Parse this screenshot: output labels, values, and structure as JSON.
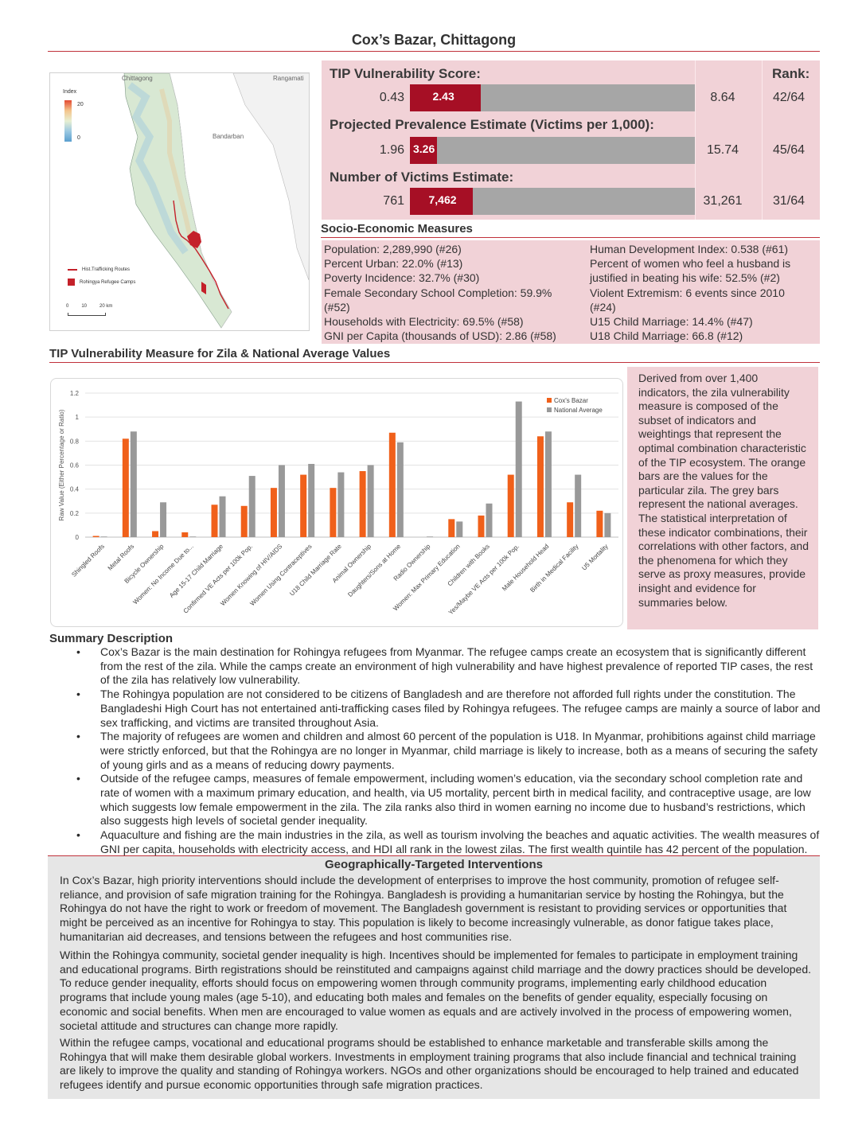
{
  "title": "Cox’s Bazar, Chittagong",
  "map": {
    "labels": {
      "chittagong": "Chittagong",
      "rangamati": "Rangamati",
      "bandarban": "Bandarban"
    },
    "legend_title": "Index",
    "legend_max": "20",
    "legend_min": "0",
    "legend_routes": "Hist.Trafficking Routes",
    "legend_camps": "Rohingya Refugee Camps",
    "scale": [
      "0",
      "10",
      "20 km"
    ]
  },
  "scores": {
    "vuln_title": "TIP Vulnerability Score:",
    "rank_title": "Rank:",
    "rows": [
      {
        "min": "0.43",
        "value": "2.43",
        "max": "8.64",
        "rank": "42/64",
        "fill": 0.249
      },
      {
        "min": "1.96",
        "value": "3.26",
        "max": "15.74",
        "rank": "45/64",
        "fill": 0.094
      },
      {
        "min": "761",
        "value": "7,462",
        "max": "31,261",
        "rank": "31/64",
        "fill": 0.22
      }
    ],
    "prev_title": "Projected Prevalence Estimate (Victims per 1,000):",
    "victims_title": "Number of Victims Estimate:"
  },
  "socio": {
    "heading": "Socio-Economic Measures",
    "left": [
      "Population: 2,289,990 (#26)",
      "Percent Urban: 22.0% (#13)",
      "Poverty Incidence: 32.7% (#30)",
      "Female Secondary School Completion: 59.9%",
      "(#52)",
      "Households with Electricity: 69.5% (#58)",
      "GNI per Capita (thousands of USD): 2.86 (#58)"
    ],
    "right": [
      "Human Development Index: 0.538 (#61)",
      "Percent of women who feel a husband is",
      "justified in beating his wife: 52.5% (#2)",
      "Violent Extremism: 6 events since 2010",
      "(#24)",
      "U15 Child Marriage: 14.4% (#47)",
      "U18 Child Marriage: 66.8 (#12)"
    ]
  },
  "chart_heading": "TIP Vulnerability Measure for Zila & National Average Values",
  "chart_data": {
    "type": "bar",
    "ylabel": "Raw Value (Either Percentage or Ratio)",
    "xlabel": "",
    "ylim": [
      0,
      1.2
    ],
    "yticks": [
      "0",
      "0.2",
      "0.4",
      "0.6",
      "0.8",
      "1",
      "1.2"
    ],
    "grid": true,
    "legend_position": "top-right",
    "categories": [
      "Shingled Roofs",
      "Metal Roofs",
      "Bicycle Ownership",
      "Women: No Income Due to...",
      "Age 15-17 Child Marriage",
      "Confirmed VE Acts per 100k Pop.",
      "Women Knowing of HIV/AIDS",
      "Women Using Contraceptives",
      "U18 Child Marriage Rate",
      "Animal Ownership",
      "Daughters/Sons at Home",
      "Radio Ownership",
      "Women: Max Primary Education",
      "Children with Books",
      "Yes/Maybe VE Acts per 100k Pop.",
      "Male Household Head",
      "Birth in Medical Facility",
      "U5 Mortality"
    ],
    "series": [
      {
        "name": "Cox's Bazar",
        "color": "#f0601a",
        "values": [
          0.01,
          0.82,
          0.05,
          0.04,
          0.27,
          0.26,
          0.41,
          0.52,
          0.41,
          0.55,
          0.87,
          0.0,
          0.15,
          0.18,
          0.52,
          0.84,
          0.29,
          0.22
        ]
      },
      {
        "name": "National Average",
        "color": "#999999",
        "values": [
          0.005,
          0.88,
          0.29,
          0.005,
          0.34,
          0.51,
          0.6,
          0.61,
          0.54,
          0.6,
          0.79,
          0.005,
          0.13,
          0.28,
          1.13,
          0.88,
          0.52,
          0.2
        ]
      }
    ]
  },
  "chart_description": "Derived from over 1,400 indicators, the zila vulnerability measure is composed of the subset of indicators and weightings that represent the optimal combination characteristic of the TIP ecosystem. The orange bars are the values for the particular zila. The grey bars represent the national averages. The statistical interpretation of these indicator combinations, their correlations with other factors, and the phenomena for which they serve as proxy measures, provide insight and evidence for summaries below.",
  "summary": {
    "heading": "Summary Description",
    "bullets": [
      "Cox’s Bazar is the main destination for Rohingya refugees from Myanmar. The refugee camps create an ecosystem that is significantly different from the rest of the zila. While the camps create an environment of high vulnerability and have highest prevalence of reported TIP cases, the rest of the zila has relatively low vulnerability.",
      "The Rohingya population are not considered to be citizens of Bangladesh and are therefore not afforded full rights under the constitution. The Bangladeshi High Court has not entertained anti-trafficking cases filed by Rohingya refugees. The refugee camps are mainly a source of labor and sex trafficking, and victims are transited throughout Asia.",
      "The majority of refugees are women and children and almost 60 percent of the population is U18. In Myanmar, prohibitions against child marriage were strictly enforced, but that the Rohingya are no longer in Myanmar, child marriage is likely to increase, both as a means of securing the safety of young girls and as a means of reducing dowry payments.",
      "Outside of the refugee camps, measures of female empowerment, including women’s education, via the secondary school completion rate and rate of women with a maximum primary education, and health, via U5 mortality, percent birth in medical facility, and contraceptive usage, are low which suggests low female empowerment in the zila. The zila ranks also third in women earning no income due to husband’s restrictions, which also suggests high levels of societal gender inequality.",
      "Aquaculture and fishing are the main industries in the zila, as well as tourism involving the beaches and aquatic activities. The wealth measures of GNI per capita, households with electricity access, and HDI all rank in the lowest zilas. The first wealth quintile has 42 percent of the population."
    ]
  },
  "interventions": {
    "heading": "Geographically-Targeted Interventions",
    "paragraphs": [
      "In Cox’s Bazar, high priority interventions should include the development of enterprises to improve the host community, promotion of refugee self-reliance, and provision of safe migration training for the Rohingya. Bangladesh is providing a humanitarian service by hosting the Rohingya, but the Rohingya do not have the right to work or freedom of movement. The Bangladesh government is resistant to providing services or opportunities that might be perceived as an incentive for Rohingya to stay. This population is likely to become increasingly vulnerable, as donor fatigue takes place, humanitarian aid decreases, and tensions between the refugees and host communities rise.",
      "Within the Rohingya community, societal gender inequality is high. Incentives should be implemented for females to participate in employment training and educational programs. Birth registrations should be reinstituted and campaigns against child marriage and the dowry practices should be developed. To reduce gender inequality, efforts should focus on empowering women through community programs, implementing early childhood education programs that include young males (age 5-10), and educating both males and females on the benefits of gender equality, especially focusing on economic and social benefits. When men are encouraged to value women as equals and are actively involved in the process of empowering women, societal attitude and structures can change more rapidly.",
      "Within the refugee camps, vocational and educational programs should be established to enhance marketable and transferable skills among the Rohingya that will make them desirable global workers. Investments in employment training programs that also include financial and technical training are likely to improve the quality and standing of Rohingya workers. NGOs and other organizations should be encouraged to help trained and educated refugees identify and pursue economic opportunities through safe migration practices."
    ]
  }
}
